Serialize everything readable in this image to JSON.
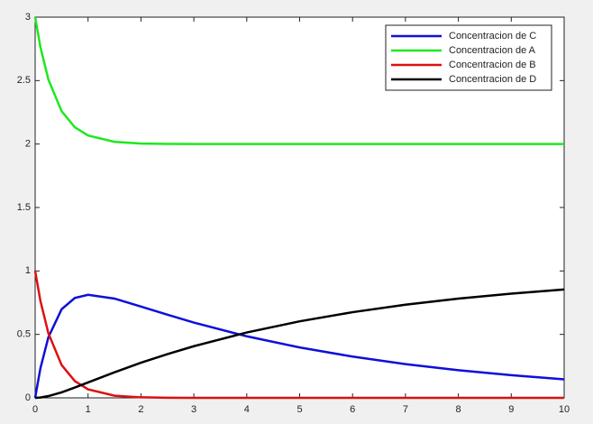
{
  "chart_data": {
    "type": "line",
    "x": [
      0,
      0.1,
      0.25,
      0.5,
      0.75,
      1,
      1.5,
      2,
      2.5,
      3,
      4,
      5,
      6,
      7,
      8,
      9,
      10
    ],
    "series": [
      {
        "name": "Concentracion de C",
        "color": "#0f0fd8",
        "values": [
          0,
          0.234,
          0.477,
          0.698,
          0.787,
          0.812,
          0.782,
          0.719,
          0.655,
          0.593,
          0.485,
          0.397,
          0.325,
          0.266,
          0.218,
          0.179,
          0.146
        ]
      },
      {
        "name": "Concentracion de A",
        "color": "#1ee81e",
        "values": [
          3,
          2.763,
          2.509,
          2.259,
          2.132,
          2.067,
          2.017,
          2.004,
          2.001,
          2,
          2,
          2,
          2,
          2,
          2,
          2,
          2
        ]
      },
      {
        "name": "Concentracion de B",
        "color": "#dd1010",
        "values": [
          1,
          0.763,
          0.509,
          0.259,
          0.132,
          0.067,
          0.017,
          0.004,
          0.001,
          0,
          0,
          0,
          0,
          0,
          0,
          0,
          0
        ]
      },
      {
        "name": "Concentracion de D",
        "color": "#000000",
        "values": [
          0,
          0.003,
          0.014,
          0.043,
          0.081,
          0.121,
          0.201,
          0.277,
          0.344,
          0.407,
          0.515,
          0.603,
          0.675,
          0.734,
          0.782,
          0.821,
          0.854
        ]
      }
    ],
    "xlim": [
      0,
      10
    ],
    "xticks": [
      0,
      1,
      2,
      3,
      4,
      5,
      6,
      7,
      8,
      9,
      10
    ],
    "ylim": [
      0,
      3
    ],
    "yticks": [
      0,
      0.5,
      1,
      1.5,
      2,
      2.5,
      3
    ],
    "grid": false,
    "legend": "top-right"
  }
}
